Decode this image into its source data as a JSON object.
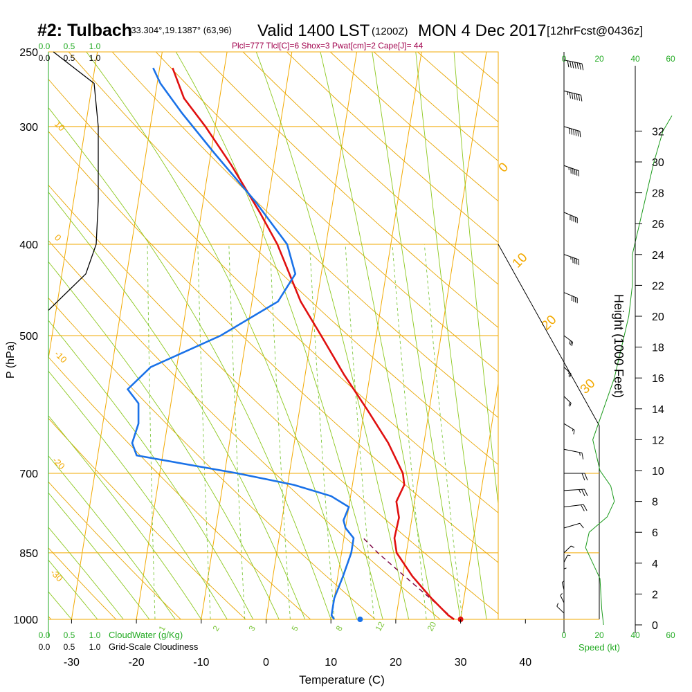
{
  "header": {
    "station": "#2: Tulbach",
    "coords": "-33.304°,19.1387° (63,96)",
    "valid": "Valid 1400 LST",
    "utc": "(1200Z)",
    "date": "MON 4 Dec 2017",
    "forecast": "[12hrFcst@0436z]",
    "indices": "Plcl=777 Tlcl[C]=6 Shox=3 Pwat[cm]=2 Cape[J]= 44"
  },
  "labels": {
    "y_left": "P (hPa)",
    "x_bottom": "Temperature (C)",
    "y_right": "Height (1000 Feet)",
    "speed": "Speed (kt)",
    "cloudwater": "CloudWater (g/Kg)",
    "cloudiness": "Grid-Scale Cloudiness"
  },
  "colors": {
    "isobar": "#f2a900",
    "dry_adiabat": "#e8a500",
    "moist_adiabat": "#8cc81e",
    "mixing_ratio": "#7cc63b",
    "temperature": "#e01010",
    "dewpoint": "#1a72e8",
    "parcel": "#7a0040",
    "cloud_scale": "#22aa22",
    "indices": "#a0004c",
    "wind_speed": "#1a9a1a"
  },
  "chart_data": {
    "type": "skew-t",
    "pressure_ticks": [
      250,
      300,
      400,
      500,
      700,
      850,
      1000
    ],
    "temperature_ticks": [
      -30,
      -20,
      -10,
      0,
      10,
      20,
      30,
      40
    ],
    "xlim": [
      -34,
      36
    ],
    "ylim_hpa": [
      1000,
      250
    ],
    "isotherm_labels": [
      {
        "t": -10,
        "label": "-10"
      },
      {
        "t": 0,
        "label": "0"
      },
      {
        "t": 10,
        "label": "10"
      },
      {
        "t": 20,
        "label": "20"
      },
      {
        "t": 30,
        "label": "30"
      },
      {
        "t": -20,
        "label": "-20"
      },
      {
        "t": -30,
        "label": "-30"
      },
      {
        "t": -40,
        "label": "-40"
      }
    ],
    "mixing_ratio_labels": [
      "1",
      "2",
      "3",
      "5",
      "8",
      "12",
      "20"
    ],
    "cloud_scale_top": [
      "0.0",
      "0.5",
      "1.0"
    ],
    "cloud_scale_top2": [
      "0.0",
      "0.5",
      "1.0"
    ],
    "speed_ticks": [
      "0",
      "20",
      "40",
      "60"
    ],
    "height_ticks": [
      0,
      2,
      4,
      6,
      8,
      10,
      12,
      14,
      16,
      18,
      20,
      22,
      24,
      26,
      28,
      30,
      32
    ],
    "temperature_profile": [
      {
        "p": 1000,
        "t": 29.0
      },
      {
        "p": 990,
        "t": 28.0
      },
      {
        "p": 950,
        "t": 25.0
      },
      {
        "p": 900,
        "t": 21.5
      },
      {
        "p": 850,
        "t": 18.5
      },
      {
        "p": 820,
        "t": 17.8
      },
      {
        "p": 780,
        "t": 18.0
      },
      {
        "p": 750,
        "t": 17.2
      },
      {
        "p": 720,
        "t": 18.0
      },
      {
        "p": 700,
        "t": 17.5
      },
      {
        "p": 650,
        "t": 14.5
      },
      {
        "p": 600,
        "t": 10.5
      },
      {
        "p": 550,
        "t": 6.0
      },
      {
        "p": 500,
        "t": 1.5
      },
      {
        "p": 460,
        "t": -2.5
      },
      {
        "p": 400,
        "t": -7.5
      },
      {
        "p": 370,
        "t": -11.0
      },
      {
        "p": 330,
        "t": -16.5
      },
      {
        "p": 300,
        "t": -21.5
      },
      {
        "p": 280,
        "t": -25.5
      },
      {
        "p": 260,
        "t": -28.0
      }
    ],
    "dewpoint_profile": [
      {
        "p": 1000,
        "t": 10.5
      },
      {
        "p": 990,
        "t": 10.0
      },
      {
        "p": 950,
        "t": 10.0
      },
      {
        "p": 900,
        "t": 10.8
      },
      {
        "p": 850,
        "t": 11.5
      },
      {
        "p": 820,
        "t": 11.5
      },
      {
        "p": 800,
        "t": 10.0
      },
      {
        "p": 785,
        "t": 9.5
      },
      {
        "p": 760,
        "t": 10.0
      },
      {
        "p": 740,
        "t": 7.0
      },
      {
        "p": 720,
        "t": 1.0
      },
      {
        "p": 700,
        "t": -8.0
      },
      {
        "p": 670,
        "t": -24.0
      },
      {
        "p": 650,
        "t": -25.0
      },
      {
        "p": 620,
        "t": -24.5
      },
      {
        "p": 590,
        "t": -25.0
      },
      {
        "p": 570,
        "t": -27.0
      },
      {
        "p": 540,
        "t": -24.0
      },
      {
        "p": 500,
        "t": -14.0
      },
      {
        "p": 460,
        "t": -6.0
      },
      {
        "p": 430,
        "t": -4.0
      },
      {
        "p": 400,
        "t": -6.0
      },
      {
        "p": 360,
        "t": -12.0
      },
      {
        "p": 320,
        "t": -19.5
      },
      {
        "p": 290,
        "t": -25.5
      },
      {
        "p": 270,
        "t": -29.5
      },
      {
        "p": 260,
        "t": -31.0
      }
    ],
    "parcel_path": [
      {
        "p": 1000,
        "t": 29.0
      },
      {
        "p": 950,
        "t": 24.8
      },
      {
        "p": 900,
        "t": 20.3
      },
      {
        "p": 850,
        "t": 15.6
      },
      {
        "p": 820,
        "t": 13.0
      }
    ],
    "surface_points": {
      "t": 30.0,
      "td": 14.5,
      "p": 1000
    },
    "cloudiness_profile": [
      {
        "p": 250,
        "v": 0.12
      },
      {
        "p": 270,
        "v": 1.1
      },
      {
        "p": 300,
        "v": 1.2
      },
      {
        "p": 360,
        "v": 1.2
      },
      {
        "p": 400,
        "v": 1.15
      },
      {
        "p": 430,
        "v": 0.9
      },
      {
        "p": 470,
        "v": 0.0
      }
    ],
    "wind_speed_profile": [
      {
        "h": 0,
        "v": 22
      },
      {
        "h": 1,
        "v": 21
      },
      {
        "h": 3,
        "v": 20
      },
      {
        "h": 5,
        "v": 12
      },
      {
        "h": 6,
        "v": 14
      },
      {
        "h": 7,
        "v": 24
      },
      {
        "h": 8,
        "v": 28
      },
      {
        "h": 9,
        "v": 26
      },
      {
        "h": 10,
        "v": 20
      },
      {
        "h": 12,
        "v": 16
      },
      {
        "h": 14,
        "v": 22
      },
      {
        "h": 16,
        "v": 28
      },
      {
        "h": 18,
        "v": 32
      },
      {
        "h": 20,
        "v": 36
      },
      {
        "h": 22,
        "v": 38
      },
      {
        "h": 24,
        "v": 38
      },
      {
        "h": 26,
        "v": 42
      },
      {
        "h": 28,
        "v": 46
      },
      {
        "h": 30,
        "v": 50
      },
      {
        "h": 32,
        "v": 55
      },
      {
        "h": 33,
        "v": 60
      }
    ],
    "wind_barbs": [
      {
        "p": 985,
        "dir": 160,
        "spd": 12
      },
      {
        "p": 960,
        "dir": 170,
        "spd": 14
      },
      {
        "p": 930,
        "dir": 175,
        "spd": 14
      },
      {
        "p": 900,
        "dir": 180,
        "spd": 14
      },
      {
        "p": 870,
        "dir": 190,
        "spd": 12
      },
      {
        "p": 850,
        "dir": 200,
        "spd": 10
      },
      {
        "p": 800,
        "dir": 230,
        "spd": 12
      },
      {
        "p": 760,
        "dir": 250,
        "spd": 22
      },
      {
        "p": 730,
        "dir": 260,
        "spd": 26
      },
      {
        "p": 700,
        "dir": 270,
        "spd": 24
      },
      {
        "p": 660,
        "dir": 300,
        "spd": 18
      },
      {
        "p": 620,
        "dir": 330,
        "spd": 15
      },
      {
        "p": 580,
        "dir": 340,
        "spd": 20
      },
      {
        "p": 540,
        "dir": 340,
        "spd": 25
      },
      {
        "p": 500,
        "dir": 335,
        "spd": 30
      },
      {
        "p": 450,
        "dir": 320,
        "spd": 40
      },
      {
        "p": 410,
        "dir": 315,
        "spd": 45
      },
      {
        "p": 370,
        "dir": 320,
        "spd": 50
      },
      {
        "p": 330,
        "dir": 315,
        "spd": 55
      },
      {
        "p": 300,
        "dir": 310,
        "spd": 60
      },
      {
        "p": 275,
        "dir": 305,
        "spd": 65
      },
      {
        "p": 255,
        "dir": 300,
        "spd": 70
      }
    ]
  }
}
